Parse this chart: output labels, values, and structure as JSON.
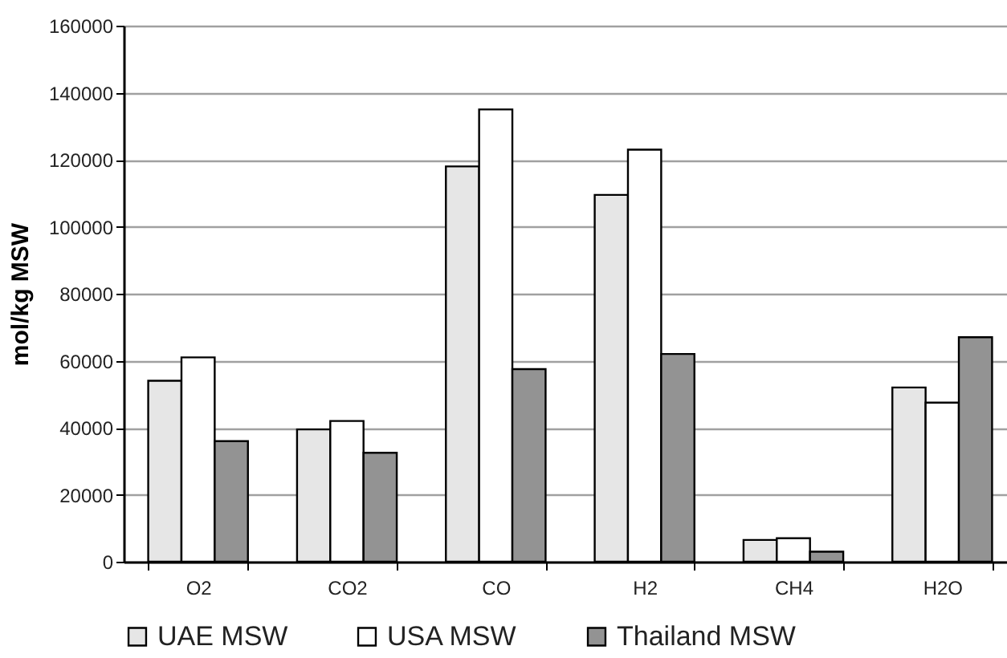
{
  "chart_data": {
    "type": "bar",
    "ylabel": "mol/kg MSW",
    "categories": [
      "O2",
      "CO2",
      "CO",
      "H2",
      "CH4",
      "H2O"
    ],
    "series": [
      {
        "name": "UAE MSW",
        "color": "#e6e6e6",
        "values": [
          54000,
          39500,
          118000,
          109500,
          6500,
          52000
        ]
      },
      {
        "name": "USA MSW",
        "color": "#ffffff",
        "values": [
          61000,
          42000,
          135000,
          123000,
          7000,
          47500
        ]
      },
      {
        "name": "Thailand MSW",
        "color": "#939393",
        "values": [
          36000,
          32500,
          57500,
          62000,
          3000,
          67000
        ]
      }
    ],
    "ylim": [
      0,
      160000
    ],
    "yticks": [
      0,
      20000,
      40000,
      60000,
      80000,
      100000,
      120000,
      140000,
      160000
    ],
    "grid": "y",
    "legend": "bottom"
  }
}
